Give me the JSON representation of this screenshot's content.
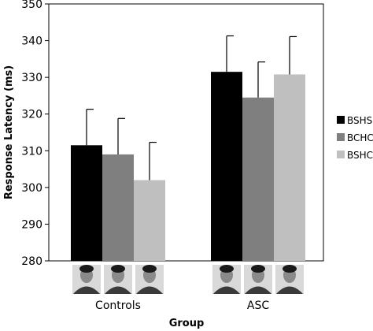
{
  "chart_data": {
    "type": "bar",
    "categories": [
      "Controls",
      "ASC"
    ],
    "series": [
      {
        "name": "BSHS",
        "values": [
          311.5,
          331.5
        ],
        "errors": [
          9.8,
          9.8
        ],
        "color": "#000000"
      },
      {
        "name": "BCHC",
        "values": [
          309.0,
          324.5
        ],
        "errors": [
          9.8,
          9.7
        ],
        "color": "#7f7f7f"
      },
      {
        "name": "BSHC",
        "values": [
          302.0,
          330.8
        ],
        "errors": [
          10.3,
          10.3
        ],
        "color": "#bfbfbf"
      }
    ],
    "title": "",
    "xlabel": "Group",
    "ylabel": "Response Latency (ms)",
    "ylim": [
      280,
      350
    ],
    "yticks": [
      280,
      290,
      300,
      310,
      320,
      330,
      340,
      350
    ],
    "grid": false,
    "legend_position": "right",
    "stimulus_images": "face photographs shown under each bar"
  }
}
